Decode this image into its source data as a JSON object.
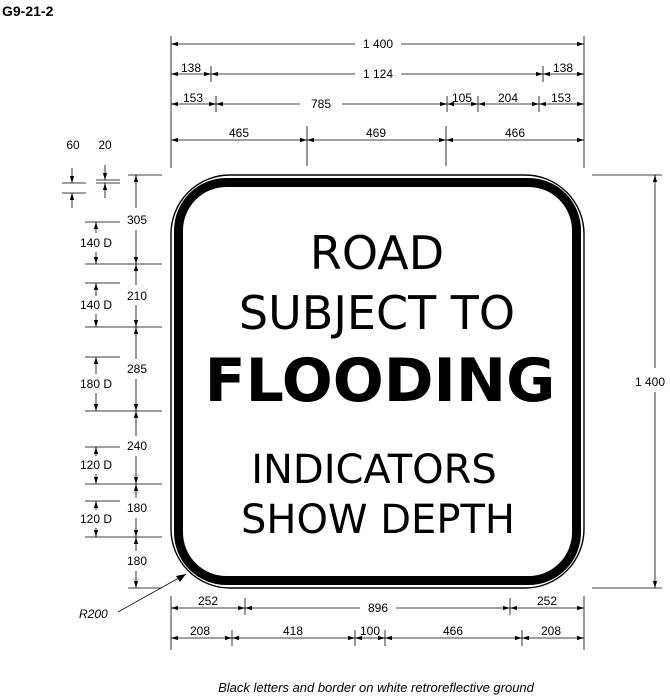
{
  "sign_code": "G9-21-2",
  "sign": {
    "line1": "ROAD",
    "line2": "SUBJECT TO",
    "line3": "FLOODING",
    "line4": "INDICATORS",
    "line5": "SHOW DEPTH"
  },
  "dimensions": {
    "top": {
      "overall": "1 400",
      "row2": [
        "138",
        "1 124",
        "138"
      ],
      "row3": [
        "153",
        "785",
        "105",
        "204",
        "153"
      ],
      "row4": [
        "465",
        "469",
        "466"
      ]
    },
    "left": {
      "border_small": [
        "60",
        "20"
      ],
      "spacing": [
        "305",
        "210",
        "285",
        "240",
        "180",
        "180"
      ],
      "letter_heights": [
        "140 D",
        "140 D",
        "180 D",
        "120 D",
        "120 D"
      ]
    },
    "right": {
      "overall": "1 400"
    },
    "bottom": {
      "row1": [
        "252",
        "896",
        "252"
      ],
      "row2": [
        "208",
        "418",
        "100",
        "466",
        "208"
      ]
    },
    "radius": "R200"
  },
  "footnote": "Black letters and border on white retroreflective ground"
}
